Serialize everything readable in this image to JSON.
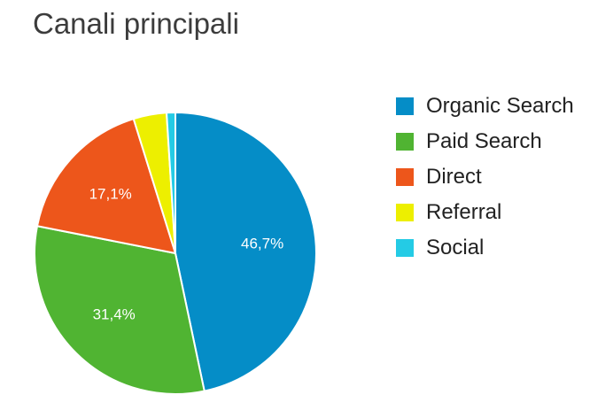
{
  "chart_data": {
    "type": "pie",
    "title": "Canali principali",
    "legend_position": "right",
    "slices": [
      {
        "label": "Organic Search",
        "value": 46.7,
        "value_label": "46,7%",
        "color": "#058dc7"
      },
      {
        "label": "Paid Search",
        "value": 31.4,
        "value_label": "31,4%",
        "color": "#50b432"
      },
      {
        "label": "Direct",
        "value": 17.1,
        "value_label": "17,1%",
        "color": "#ed561b"
      },
      {
        "label": "Referral",
        "value": 3.8,
        "value_label": "",
        "color": "#edef00"
      },
      {
        "label": "Social",
        "value": 1.0,
        "value_label": "",
        "color": "#24cbe5"
      }
    ]
  }
}
